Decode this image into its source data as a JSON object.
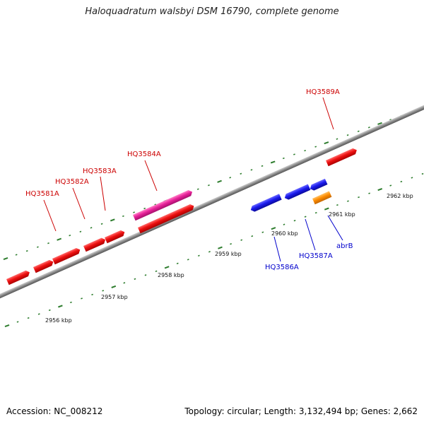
{
  "title": "Haloquadratum walsbyi DSM 16790, complete genome",
  "footer": {
    "accession": "Accession: NC_008212",
    "summary": "Topology: circular; Length: 3,132,494 bp; Genes: 2,662"
  },
  "colors": {
    "backbone": "#888888",
    "ruler_tick": "#2e7d2e",
    "forward_gene": "#ee1111",
    "highlight_gene": "#e8229a",
    "reverse_gene": "#1a1aee",
    "rna_gene": "#ff8c00",
    "forward_label": "#cc0000",
    "reverse_label": "#0000cc"
  },
  "ruler_labels": [
    "2956 kbp",
    "2957 kbp",
    "2958 kbp",
    "2959 kbp",
    "2960 kbp",
    "2961 kbp",
    "2962 kbp"
  ],
  "gene_labels": [
    {
      "text": "HQ3581A",
      "strand": "forward"
    },
    {
      "text": "HQ3582A",
      "strand": "forward"
    },
    {
      "text": "HQ3583A",
      "strand": "forward"
    },
    {
      "text": "HQ3584A",
      "strand": "forward"
    },
    {
      "text": "HQ3589A",
      "strand": "forward"
    },
    {
      "text": "HQ3586A",
      "strand": "reverse"
    },
    {
      "text": "HQ3587A",
      "strand": "reverse"
    },
    {
      "text": "abrB",
      "strand": "reverse"
    }
  ]
}
